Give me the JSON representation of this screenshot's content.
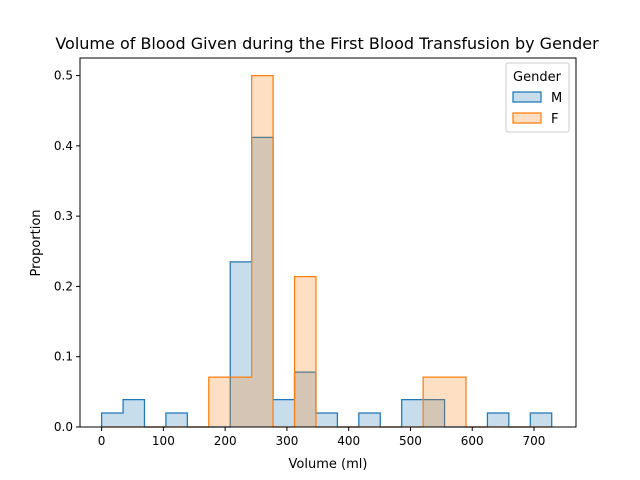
{
  "chart_data": {
    "type": "histogram",
    "title": "Volume of Blood Given during the First Blood Transfusion by Gender",
    "xlabel": "Volume (ml)",
    "ylabel": "Proportion",
    "xlim": [
      -35,
      768
    ],
    "ylim": [
      0,
      0.525
    ],
    "xticks": [
      0,
      100,
      200,
      300,
      400,
      500,
      600,
      700
    ],
    "yticks": [
      0.0,
      0.1,
      0.2,
      0.3,
      0.4,
      0.5
    ],
    "bins": [
      0,
      34.7,
      69.4,
      104.1,
      138.8,
      173.5,
      208.2,
      242.9,
      277.6,
      312.3,
      347,
      381.7,
      416.4,
      451.1,
      485.8,
      520.5,
      555.2,
      589.9,
      624.6,
      659.3,
      694,
      728.7
    ],
    "grid": false,
    "legend": {
      "title": "Gender",
      "position": "top-right"
    },
    "series": [
      {
        "name": "M",
        "color": "#1f77b4",
        "values": [
          0.02,
          0.039,
          0,
          0.02,
          0,
          0,
          0.235,
          0.412,
          0.039,
          0.078,
          0.02,
          0,
          0.02,
          0,
          0.039,
          0.039,
          0,
          0,
          0.02,
          0,
          0.02
        ]
      },
      {
        "name": "F",
        "color": "#ff7f0e",
        "values": [
          0,
          0,
          0,
          0,
          0,
          0.071,
          0.071,
          0.5,
          0,
          0.214,
          0,
          0,
          0,
          0,
          0,
          0.071,
          0.071,
          0,
          0,
          0,
          0
        ]
      }
    ]
  }
}
